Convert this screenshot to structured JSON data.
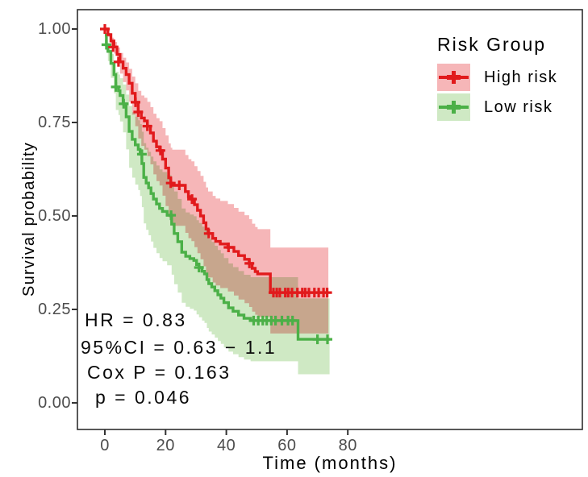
{
  "chart_data": {
    "type": "line",
    "subtype": "kaplan-meier-survival",
    "title": "",
    "xlabel": "Time (months)",
    "ylabel": "Survival probability",
    "x_ticks": [
      {
        "v": 0,
        "label": "0"
      },
      {
        "v": 20,
        "label": "20"
      },
      {
        "v": 40,
        "label": "40"
      },
      {
        "v": 60,
        "label": "60"
      },
      {
        "v": 80,
        "label": "80"
      }
    ],
    "y_ticks": [
      {
        "v": 1.0,
        "label": "1.00"
      },
      {
        "v": 0.75,
        "label": "0.75"
      },
      {
        "v": 0.5,
        "label": "0.50"
      },
      {
        "v": 0.25,
        "label": "0.25"
      },
      {
        "v": 0.0,
        "label": "0.00"
      }
    ],
    "grid": false,
    "legend": {
      "title": "Risk Group",
      "position": "top-right-inside",
      "items": [
        {
          "label": "High risk",
          "line_color": "#e11a1c",
          "fill_color": "#f6b6b8"
        },
        {
          "label": "Low risk",
          "line_color": "#4bb047",
          "fill_color": "#cfe9c4"
        }
      ]
    },
    "annotations": [
      "HR =  0.83",
      "95%CI =  0.63 − 1.1",
      "Cox P =  0.163",
      "p = 0.046"
    ],
    "series": [
      {
        "name": "High risk",
        "color": "#e11a1c",
        "ci_fill": "#f6b6b8",
        "ci_upper_exp": 0.72,
        "ci_lower_exp": 1.38,
        "t_end": 73.6,
        "steps": [
          [
            0,
            1.0
          ],
          [
            1,
            0.985
          ],
          [
            2,
            0.968
          ],
          [
            3,
            0.952
          ],
          [
            4,
            0.932
          ],
          [
            5,
            0.912
          ],
          [
            6,
            0.895
          ],
          [
            7,
            0.878
          ],
          [
            8,
            0.855
          ],
          [
            9,
            0.828
          ],
          [
            10,
            0.804
          ],
          [
            11,
            0.778
          ],
          [
            12,
            0.762
          ],
          [
            13,
            0.754
          ],
          [
            14,
            0.74
          ],
          [
            15,
            0.722
          ],
          [
            16,
            0.7
          ],
          [
            17,
            0.685
          ],
          [
            18,
            0.675
          ],
          [
            19,
            0.652
          ],
          [
            20,
            0.628
          ],
          [
            21,
            0.602
          ],
          [
            21.7,
            0.588
          ],
          [
            22.2,
            0.582
          ],
          [
            26.5,
            0.565
          ],
          [
            27.5,
            0.552
          ],
          [
            28.5,
            0.545
          ],
          [
            29.5,
            0.53
          ],
          [
            30.5,
            0.515
          ],
          [
            31.5,
            0.5
          ],
          [
            32.5,
            0.482
          ],
          [
            33.3,
            0.465
          ],
          [
            34,
            0.453
          ],
          [
            35.5,
            0.44
          ],
          [
            36.5,
            0.432
          ],
          [
            38,
            0.425
          ],
          [
            40.5,
            0.416
          ],
          [
            42.5,
            0.405
          ],
          [
            44,
            0.394
          ],
          [
            46,
            0.384
          ],
          [
            47.5,
            0.373
          ],
          [
            48.5,
            0.36
          ],
          [
            49.5,
            0.351
          ],
          [
            50.3,
            0.345
          ],
          [
            54.5,
            0.295
          ]
        ],
        "censors": [
          [
            0,
            1.0
          ],
          [
            2.7,
            0.952
          ],
          [
            4.5,
            0.912
          ],
          [
            10.1,
            0.804
          ],
          [
            11,
            0.778
          ],
          [
            14,
            0.74
          ],
          [
            18.3,
            0.675
          ],
          [
            21.7,
            0.588
          ],
          [
            24.5,
            0.582
          ],
          [
            28.7,
            0.545
          ],
          [
            34.2,
            0.453
          ],
          [
            40.7,
            0.416
          ],
          [
            47.6,
            0.373
          ],
          [
            55.5,
            0.295
          ],
          [
            56.6,
            0.295
          ],
          [
            57.6,
            0.295
          ],
          [
            59.4,
            0.295
          ],
          [
            60.4,
            0.295
          ],
          [
            61.6,
            0.295
          ],
          [
            63.4,
            0.295
          ],
          [
            65,
            0.295
          ],
          [
            66,
            0.295
          ],
          [
            67.2,
            0.295
          ],
          [
            69,
            0.295
          ],
          [
            70.4,
            0.295
          ],
          [
            72,
            0.295
          ],
          [
            73.2,
            0.295
          ]
        ]
      },
      {
        "name": "Low risk",
        "color": "#4bb047",
        "ci_fill": "#cfe9c4",
        "ci_upper_exp": 0.72,
        "ci_lower_exp": 1.45,
        "t_end": 74,
        "steps": [
          [
            0,
            0.985
          ],
          [
            0.5,
            0.958
          ],
          [
            1,
            0.94
          ],
          [
            2,
            0.908
          ],
          [
            3,
            0.878
          ],
          [
            3.6,
            0.845
          ],
          [
            4.5,
            0.835
          ],
          [
            5,
            0.822
          ],
          [
            6,
            0.8
          ],
          [
            7,
            0.765
          ],
          [
            8,
            0.726
          ],
          [
            9,
            0.705
          ],
          [
            10,
            0.69
          ],
          [
            11,
            0.678
          ],
          [
            11.6,
            0.665
          ],
          [
            12.2,
            0.64
          ],
          [
            12.8,
            0.603
          ],
          [
            13.6,
            0.588
          ],
          [
            14.4,
            0.575
          ],
          [
            15.2,
            0.56
          ],
          [
            16,
            0.545
          ],
          [
            17,
            0.532
          ],
          [
            18,
            0.52
          ],
          [
            19,
            0.512
          ],
          [
            20.5,
            0.502
          ],
          [
            22,
            0.478
          ],
          [
            22.8,
            0.453
          ],
          [
            24,
            0.431
          ],
          [
            25.3,
            0.403
          ],
          [
            26.6,
            0.392
          ],
          [
            28,
            0.386
          ],
          [
            29.3,
            0.381
          ],
          [
            30.2,
            0.37
          ],
          [
            31,
            0.362
          ],
          [
            32,
            0.352
          ],
          [
            32.8,
            0.345
          ],
          [
            33.6,
            0.33
          ],
          [
            34.2,
            0.319
          ],
          [
            35.2,
            0.31
          ],
          [
            36.2,
            0.3
          ],
          [
            37.2,
            0.289
          ],
          [
            38.2,
            0.28
          ],
          [
            39.2,
            0.268
          ],
          [
            40.7,
            0.254
          ],
          [
            42.2,
            0.245
          ],
          [
            44,
            0.235
          ],
          [
            45.8,
            0.226
          ],
          [
            48,
            0.22
          ],
          [
            63.6,
            0.17
          ]
        ],
        "censors": [
          [
            0.5,
            0.958
          ],
          [
            3.6,
            0.845
          ],
          [
            6.2,
            0.8
          ],
          [
            12.2,
            0.665
          ],
          [
            21.8,
            0.502
          ],
          [
            31,
            0.362
          ],
          [
            49,
            0.22
          ],
          [
            50.5,
            0.22
          ],
          [
            52,
            0.22
          ],
          [
            53.3,
            0.22
          ],
          [
            54.8,
            0.22
          ],
          [
            56.2,
            0.22
          ],
          [
            58.3,
            0.22
          ],
          [
            60.3,
            0.22
          ],
          [
            61.8,
            0.22
          ],
          [
            70,
            0.17
          ],
          [
            73.3,
            0.17
          ]
        ]
      }
    ],
    "axis_style": {
      "panel_border_color": "#2f2f2f",
      "tick_color": "#333333",
      "tick_text_color": "#4d4d4d"
    }
  }
}
